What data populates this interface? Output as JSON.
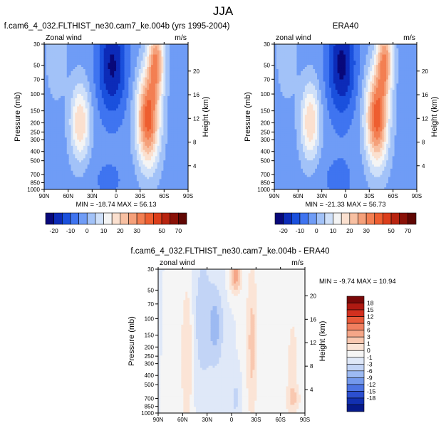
{
  "page": {
    "title": "JJA"
  },
  "panels": [
    {
      "id": "top-left",
      "title": "f.cam6_4_032.FLTHIST_ne30.cam7_ke.004b (yrs 1995-2004)",
      "left_label": "Zonal wind",
      "units": "m/s",
      "ylabel": "Pressure (mb)",
      "ylabel_right": "Height (km)",
      "stats": "MIN = -18.74   MAX = 56.13",
      "kind": "model"
    },
    {
      "id": "top-right",
      "title": "ERA40",
      "left_label": "zonal wind",
      "units": "m/s",
      "ylabel": "Pressure (mb)",
      "ylabel_right": "Height (km)",
      "stats": "MIN = -21.33   MAX = 56.73",
      "kind": "obs"
    },
    {
      "id": "bottom",
      "title": "f.cam6_4_032.FLTHIST_ne30.cam7_ke.004b - ERA40",
      "left_label": "zonal wind",
      "units": "m/s",
      "ylabel": "Pressure (mb)",
      "ylabel_right": "Height (km)",
      "stats": "MIN = -9.74   MAX = 10.94",
      "kind": "diff"
    }
  ],
  "axes": {
    "x_ticks": [
      "90N",
      "60N",
      "30N",
      "0",
      "30S",
      "60S",
      "90S"
    ],
    "x_values": [
      90,
      60,
      30,
      0,
      -30,
      -60,
      -90
    ],
    "pressure_ticks": [
      30,
      50,
      70,
      100,
      150,
      200,
      250,
      300,
      400,
      500,
      700,
      850,
      1000
    ],
    "pressure_tick_labels": [
      "30",
      "50",
      "70",
      "100",
      "150",
      "200",
      "250",
      "300",
      "400",
      "500",
      "700",
      "850",
      "1000"
    ],
    "pressure_range": [
      30,
      1000
    ],
    "height_ticks": [
      4,
      8,
      12,
      16,
      20
    ],
    "height_tick_labels": [
      "4",
      "8",
      "12",
      "16",
      "20"
    ],
    "log_scale_pressure": true
  },
  "colorbars": {
    "mean": {
      "orientation": "horizontal",
      "levels": [
        -20,
        -15,
        -10,
        -5,
        0,
        5,
        10,
        15,
        20,
        25,
        30,
        35,
        40,
        50,
        60,
        70
      ],
      "labels": [
        "-20",
        "-10",
        "0",
        "10",
        "20",
        "30",
        "50",
        "70"
      ],
      "label_levels": [
        -20,
        -10,
        0,
        10,
        20,
        30,
        50,
        70
      ],
      "colors": [
        "#08087a",
        "#0c2bb8",
        "#1a50dd",
        "#3f74f0",
        "#6f9cf6",
        "#a2c2f8",
        "#cfe0f9",
        "#f4f4f4",
        "#fbe0cf",
        "#f8c0a2",
        "#f5a07a",
        "#f37f52",
        "#ee5e30",
        "#dc3e1b",
        "#b82410",
        "#8a1107",
        "#600703"
      ]
    },
    "diff": {
      "orientation": "vertical",
      "labels": [
        "18",
        "15",
        "12",
        "9",
        "6",
        "3",
        "1",
        "0",
        "-1",
        "-3",
        "-6",
        "-9",
        "-12",
        "-15",
        "-18"
      ],
      "colors": [
        "#7a0808",
        "#b01a12",
        "#d3301f",
        "#e85a3a",
        "#f08060",
        "#f5a688",
        "#f9c8b0",
        "#fbe4d6",
        "#f5f5f5",
        "#dfe8f8",
        "#c2d4f6",
        "#9dbaf2",
        "#7499ec",
        "#4d74e2",
        "#2c4fd0",
        "#1230b0",
        "#061a8a"
      ]
    }
  }
}
